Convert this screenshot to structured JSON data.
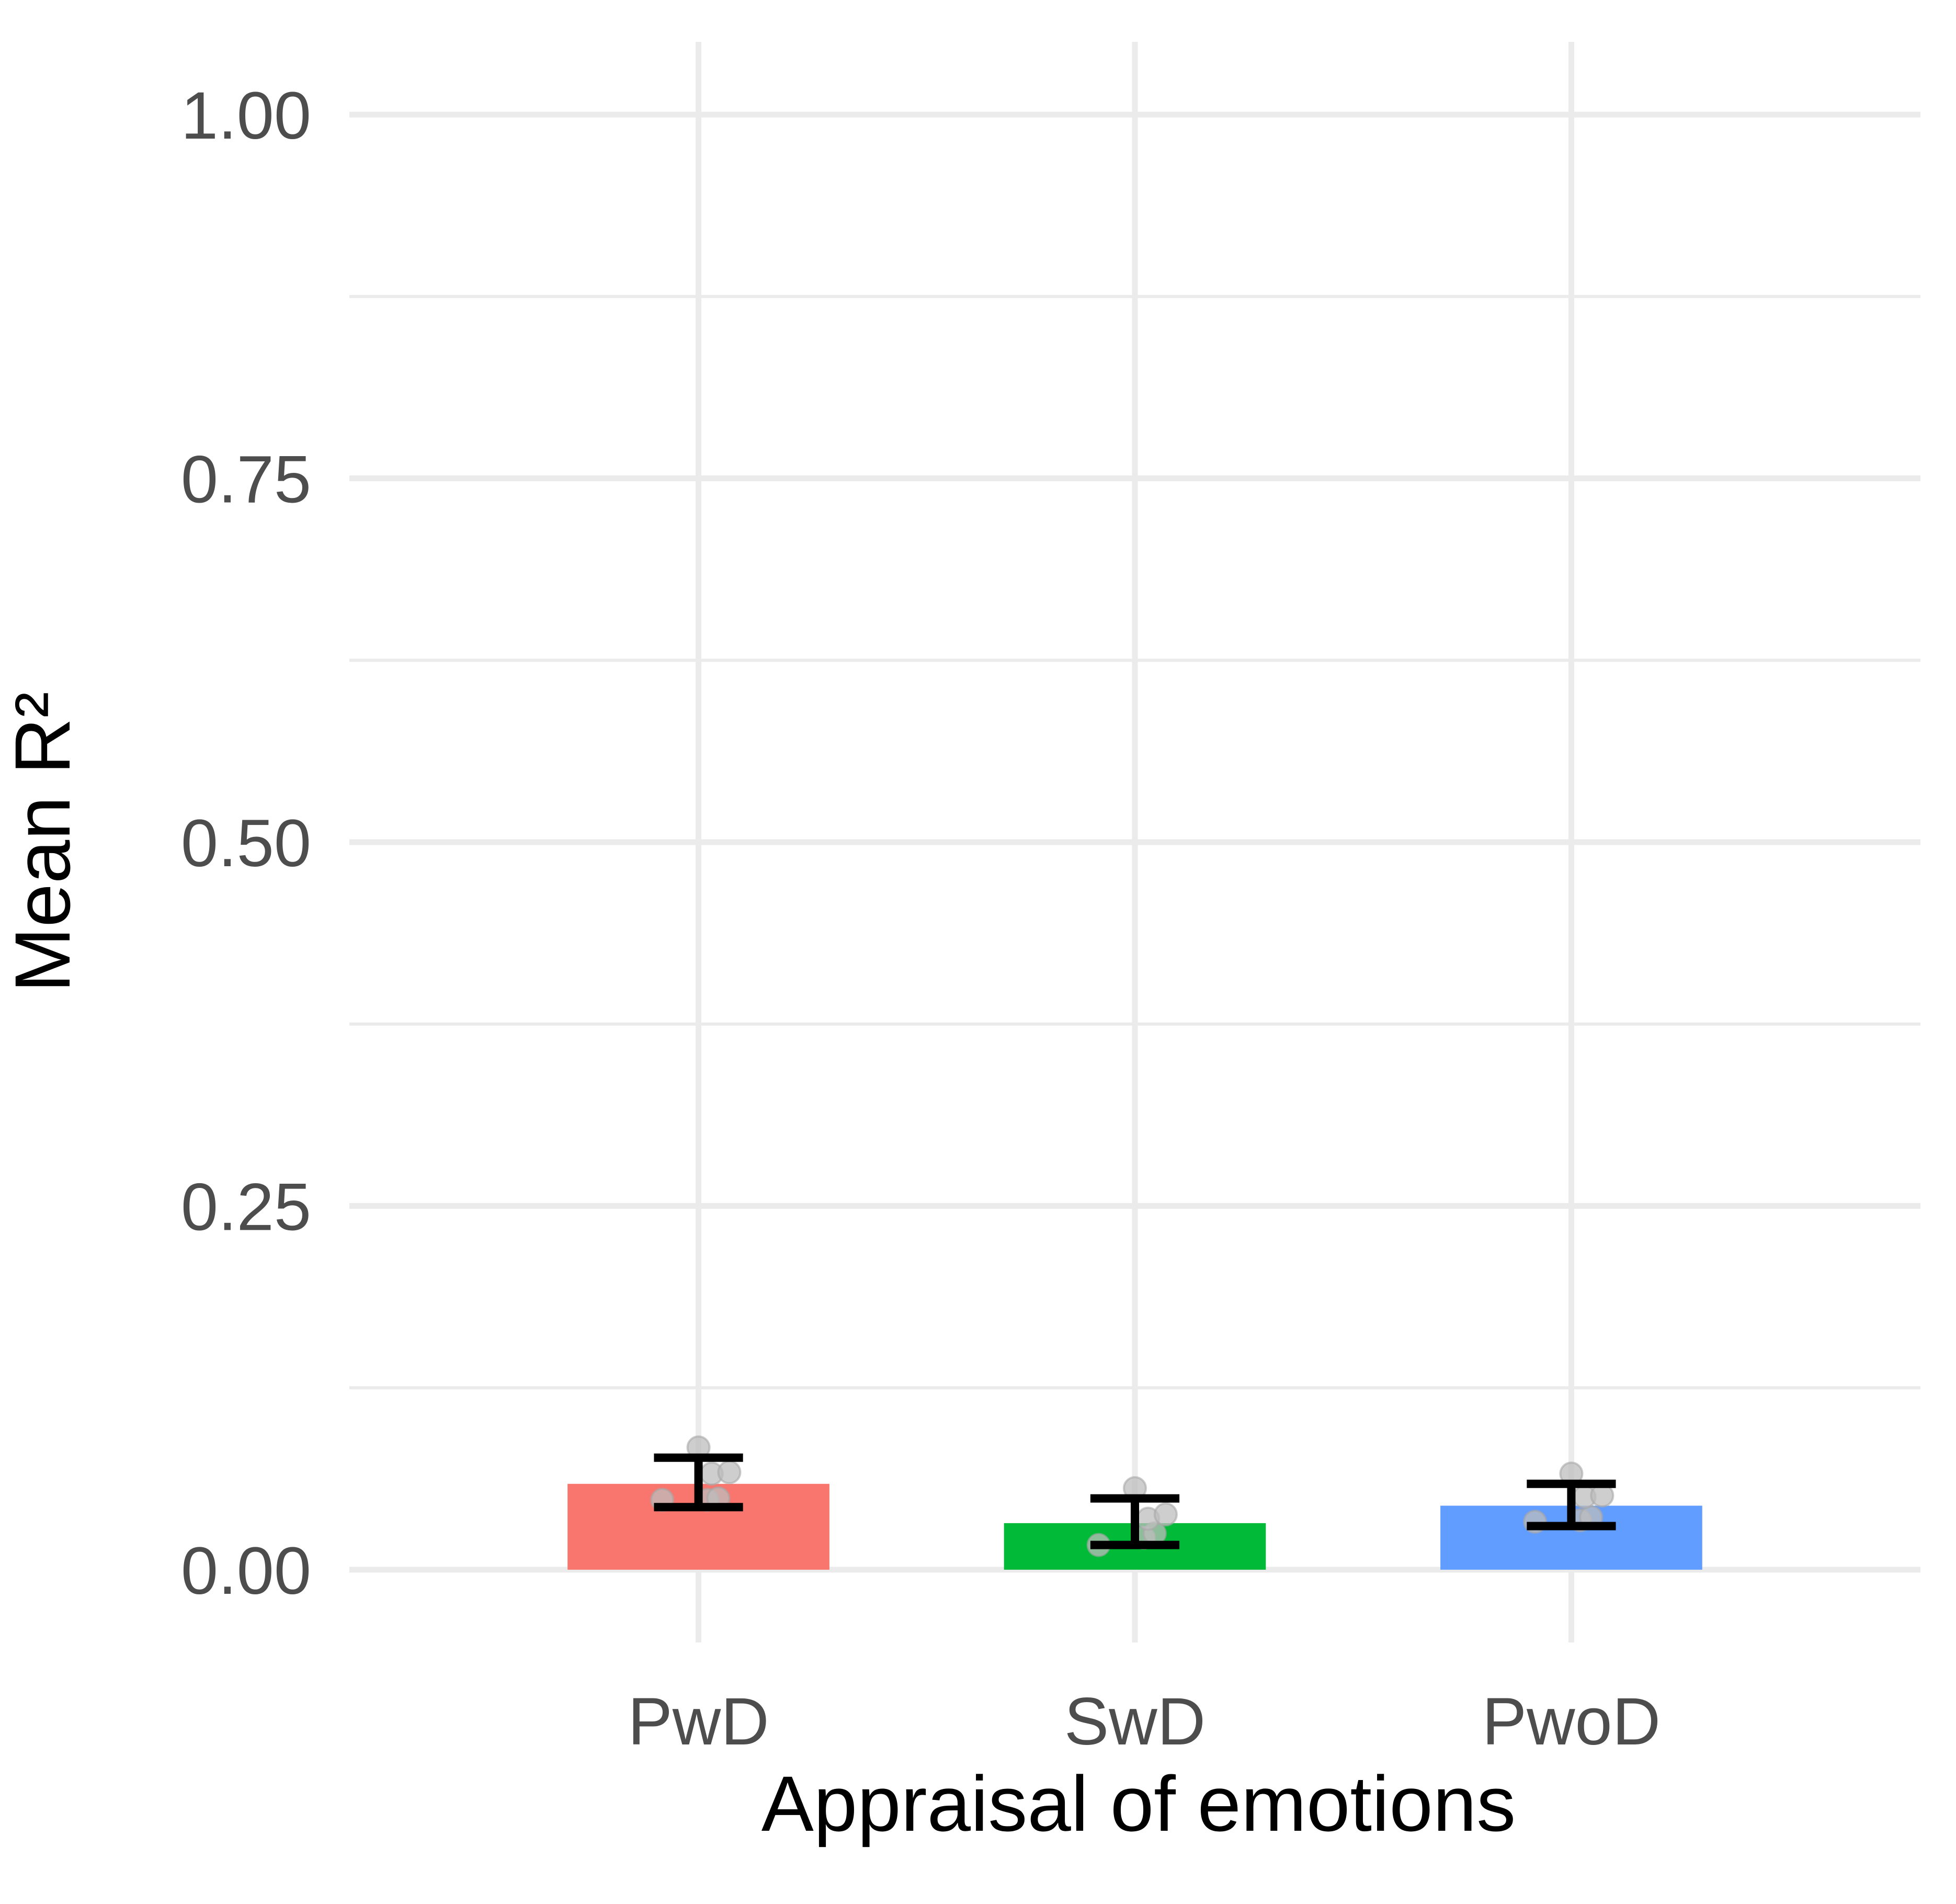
{
  "chart_data": {
    "type": "bar",
    "title": "",
    "xlabel": "Appraisal of emotions",
    "ylabel": "Mean R²",
    "categories": [
      "PwD",
      "SwD",
      "PwoD"
    ],
    "values": [
      0.059,
      0.032,
      0.044
    ],
    "error_bars": [
      {
        "low": 0.043,
        "high": 0.077
      },
      {
        "low": 0.017,
        "high": 0.049
      },
      {
        "low": 0.03,
        "high": 0.059
      }
    ],
    "points": [
      [
        0.048,
        0.048,
        0.049,
        0.066,
        0.067,
        0.084
      ],
      [
        0.017,
        0.022,
        0.025,
        0.035,
        0.038,
        0.056
      ],
      [
        0.033,
        0.034,
        0.036,
        0.05,
        0.051,
        0.066
      ]
    ],
    "bar_colors": [
      "#F8766D",
      "#00BA38",
      "#619CFF"
    ],
    "point_color": "#bdbdbd",
    "error_bar_color": "#000000",
    "ylim": [
      -0.05,
      1.05
    ],
    "y_ticks": [
      0,
      0.25,
      0.5,
      0.75,
      1
    ],
    "y_tick_labels": [
      "0.00",
      "0.25",
      "0.50",
      "0.75",
      "1.00"
    ],
    "grid": true,
    "legend": "none"
  }
}
